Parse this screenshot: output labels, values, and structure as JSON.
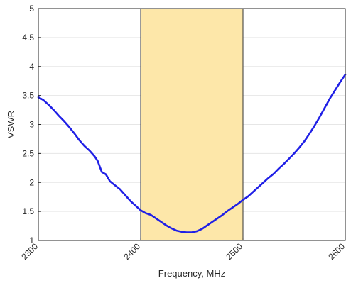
{
  "chart_data": {
    "type": "line",
    "title": "",
    "xlabel": "Frequency, MHz",
    "ylabel": "VSWR",
    "xlim": [
      2300,
      2600
    ],
    "ylim": [
      1,
      5
    ],
    "xticks": [
      2300,
      2400,
      2500,
      2600
    ],
    "xtick_labels": [
      "2300",
      "2400",
      "2500",
      "2600"
    ],
    "yticks": [
      1,
      1.5,
      2,
      2.5,
      3,
      3.5,
      4,
      4.5,
      5
    ],
    "ytick_labels": [
      "1",
      "1.5",
      "2",
      "2.5",
      "3",
      "3.5",
      "4",
      "4.5",
      "5"
    ],
    "grid": true,
    "highlight_band": {
      "x": [
        2400,
        2500
      ],
      "fill": "#fde7a9",
      "edge": "#333333"
    },
    "series": [
      {
        "color": "#1f1fe6",
        "x": [
          2300,
          2305,
          2310,
          2315,
          2320,
          2325,
          2330,
          2335,
          2340,
          2345,
          2350,
          2355,
          2358,
          2362,
          2366,
          2368,
          2370,
          2375,
          2380,
          2385,
          2390,
          2395,
          2400,
          2405,
          2410,
          2415,
          2420,
          2425,
          2430,
          2435,
          2440,
          2445,
          2450,
          2455,
          2460,
          2465,
          2470,
          2475,
          2480,
          2485,
          2490,
          2495,
          2500,
          2505,
          2510,
          2515,
          2520,
          2525,
          2530,
          2535,
          2540,
          2545,
          2550,
          2555,
          2560,
          2565,
          2570,
          2575,
          2580,
          2585,
          2590,
          2595,
          2600
        ],
        "values": [
          3.47,
          3.42,
          3.34,
          3.25,
          3.15,
          3.06,
          2.96,
          2.85,
          2.73,
          2.63,
          2.55,
          2.45,
          2.37,
          2.18,
          2.14,
          2.08,
          2.02,
          1.95,
          1.88,
          1.78,
          1.68,
          1.6,
          1.52,
          1.47,
          1.44,
          1.38,
          1.32,
          1.26,
          1.21,
          1.17,
          1.15,
          1.14,
          1.14,
          1.16,
          1.2,
          1.26,
          1.32,
          1.38,
          1.44,
          1.51,
          1.57,
          1.63,
          1.7,
          1.76,
          1.84,
          1.92,
          2.0,
          2.08,
          2.15,
          2.24,
          2.32,
          2.41,
          2.5,
          2.6,
          2.71,
          2.84,
          2.98,
          3.13,
          3.29,
          3.45,
          3.59,
          3.73,
          3.86
        ]
      }
    ]
  }
}
